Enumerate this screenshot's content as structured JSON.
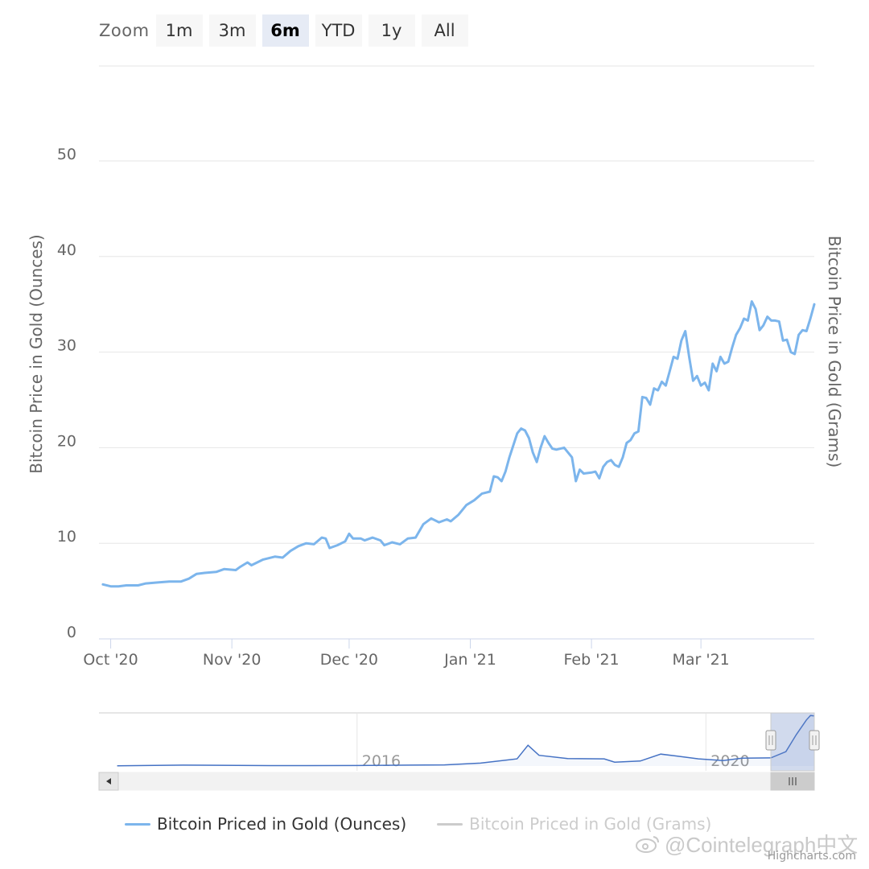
{
  "zoom": {
    "label": "Zoom",
    "buttons": [
      {
        "label": "1m",
        "selected": false
      },
      {
        "label": "3m",
        "selected": false
      },
      {
        "label": "6m",
        "selected": true
      },
      {
        "label": "YTD",
        "selected": false
      },
      {
        "label": "1y",
        "selected": false
      },
      {
        "label": "All",
        "selected": false
      }
    ]
  },
  "chart_data": {
    "type": "line",
    "ylabel_left": "Bitcoin Price in Gold (Ounces)",
    "ylabel_right": "Bitcoin Price in Gold (Grams)",
    "ylim": [
      0,
      50
    ],
    "y_ticks": [
      "0",
      "10",
      "20",
      "30",
      "40",
      "50"
    ],
    "x_ticks": [
      "Oct '20",
      "Nov '20",
      "Dec '20",
      "Jan '21",
      "Feb '21",
      "Mar '21"
    ],
    "grid": true,
    "series": [
      {
        "name": "Bitcoin Priced in Gold (Ounces)",
        "color": "#7cb5ec",
        "visible": true,
        "points": [
          [
            "2020-09-29",
            5.7
          ],
          [
            "2020-10-01",
            5.5
          ],
          [
            "2020-10-03",
            5.5
          ],
          [
            "2020-10-05",
            5.6
          ],
          [
            "2020-10-08",
            5.6
          ],
          [
            "2020-10-10",
            5.8
          ],
          [
            "2020-10-13",
            5.9
          ],
          [
            "2020-10-16",
            6.0
          ],
          [
            "2020-10-19",
            6.0
          ],
          [
            "2020-10-21",
            6.3
          ],
          [
            "2020-10-23",
            6.8
          ],
          [
            "2020-10-25",
            6.9
          ],
          [
            "2020-10-28",
            7.0
          ],
          [
            "2020-10-30",
            7.3
          ],
          [
            "2020-11-02",
            7.2
          ],
          [
            "2020-11-03",
            7.5
          ],
          [
            "2020-11-05",
            8.0
          ],
          [
            "2020-11-06",
            7.7
          ],
          [
            "2020-11-09",
            8.3
          ],
          [
            "2020-11-12",
            8.6
          ],
          [
            "2020-11-14",
            8.5
          ],
          [
            "2020-11-16",
            9.2
          ],
          [
            "2020-11-18",
            9.7
          ],
          [
            "2020-11-20",
            10.0
          ],
          [
            "2020-11-22",
            9.9
          ],
          [
            "2020-11-24",
            10.6
          ],
          [
            "2020-11-25",
            10.5
          ],
          [
            "2020-11-26",
            9.5
          ],
          [
            "2020-11-28",
            9.8
          ],
          [
            "2020-11-30",
            10.2
          ],
          [
            "2020-12-01",
            11.0
          ],
          [
            "2020-12-02",
            10.5
          ],
          [
            "2020-12-04",
            10.5
          ],
          [
            "2020-12-05",
            10.3
          ],
          [
            "2020-12-07",
            10.6
          ],
          [
            "2020-12-09",
            10.3
          ],
          [
            "2020-12-10",
            9.8
          ],
          [
            "2020-12-12",
            10.1
          ],
          [
            "2020-12-14",
            9.9
          ],
          [
            "2020-12-16",
            10.5
          ],
          [
            "2020-12-18",
            10.6
          ],
          [
            "2020-12-20",
            12.0
          ],
          [
            "2020-12-22",
            12.6
          ],
          [
            "2020-12-24",
            12.2
          ],
          [
            "2020-12-26",
            12.5
          ],
          [
            "2020-12-27",
            12.3
          ],
          [
            "2020-12-29",
            13.0
          ],
          [
            "2020-12-31",
            14.0
          ],
          [
            "2021-01-02",
            14.5
          ],
          [
            "2021-01-04",
            15.2
          ],
          [
            "2021-01-06",
            15.4
          ],
          [
            "2021-01-07",
            17.0
          ],
          [
            "2021-01-08",
            16.9
          ],
          [
            "2021-01-09",
            16.5
          ],
          [
            "2021-01-10",
            17.5
          ],
          [
            "2021-01-11",
            19.0
          ],
          [
            "2021-01-13",
            21.5
          ],
          [
            "2021-01-14",
            22.0
          ],
          [
            "2021-01-15",
            21.8
          ],
          [
            "2021-01-16",
            21.0
          ],
          [
            "2021-01-17",
            19.5
          ],
          [
            "2021-01-18",
            18.5
          ],
          [
            "2021-01-19",
            20.0
          ],
          [
            "2021-01-20",
            21.2
          ],
          [
            "2021-01-21",
            20.5
          ],
          [
            "2021-01-22",
            19.9
          ],
          [
            "2021-01-23",
            19.8
          ],
          [
            "2021-01-25",
            20.0
          ],
          [
            "2021-01-27",
            19.0
          ],
          [
            "2021-01-28",
            16.5
          ],
          [
            "2021-01-29",
            17.7
          ],
          [
            "2021-01-30",
            17.3
          ],
          [
            "2021-02-01",
            17.4
          ],
          [
            "2021-02-02",
            17.5
          ],
          [
            "2021-02-03",
            16.8
          ],
          [
            "2021-02-04",
            18.0
          ],
          [
            "2021-02-05",
            18.5
          ],
          [
            "2021-02-06",
            18.7
          ],
          [
            "2021-02-07",
            18.2
          ],
          [
            "2021-02-08",
            18.0
          ],
          [
            "2021-02-09",
            19.0
          ],
          [
            "2021-02-10",
            20.5
          ],
          [
            "2021-02-11",
            20.8
          ],
          [
            "2021-02-12",
            21.5
          ],
          [
            "2021-02-13",
            21.7
          ],
          [
            "2021-02-14",
            25.3
          ],
          [
            "2021-02-15",
            25.2
          ],
          [
            "2021-02-16",
            24.5
          ],
          [
            "2021-02-17",
            26.2
          ],
          [
            "2021-02-18",
            26.0
          ],
          [
            "2021-02-19",
            26.9
          ],
          [
            "2021-02-20",
            26.5
          ],
          [
            "2021-02-21",
            28.0
          ],
          [
            "2021-02-22",
            29.5
          ],
          [
            "2021-02-23",
            29.3
          ],
          [
            "2021-02-24",
            31.2
          ],
          [
            "2021-02-25",
            32.2
          ],
          [
            "2021-02-26",
            29.5
          ],
          [
            "2021-02-27",
            27.0
          ],
          [
            "2021-02-28",
            27.5
          ],
          [
            "2021-03-01",
            26.5
          ],
          [
            "2021-03-02",
            26.8
          ],
          [
            "2021-03-03",
            26.0
          ],
          [
            "2021-03-04",
            28.8
          ],
          [
            "2021-03-05",
            28.0
          ],
          [
            "2021-03-06",
            29.5
          ],
          [
            "2021-03-07",
            28.8
          ],
          [
            "2021-03-08",
            29.0
          ],
          [
            "2021-03-09",
            30.5
          ],
          [
            "2021-03-10",
            31.8
          ],
          [
            "2021-03-11",
            32.5
          ],
          [
            "2021-03-12",
            33.5
          ],
          [
            "2021-03-13",
            33.3
          ],
          [
            "2021-03-14",
            35.3
          ],
          [
            "2021-03-15",
            34.5
          ],
          [
            "2021-03-16",
            32.3
          ],
          [
            "2021-03-17",
            32.8
          ],
          [
            "2021-03-18",
            33.7
          ],
          [
            "2021-03-19",
            33.3
          ],
          [
            "2021-03-20",
            33.3
          ],
          [
            "2021-03-21",
            33.2
          ],
          [
            "2021-03-22",
            31.2
          ],
          [
            "2021-03-23",
            31.3
          ],
          [
            "2021-03-24",
            30.0
          ],
          [
            "2021-03-25",
            29.8
          ],
          [
            "2021-03-26",
            31.8
          ],
          [
            "2021-03-27",
            32.3
          ],
          [
            "2021-03-28",
            32.2
          ],
          [
            "2021-03-29",
            33.5
          ],
          [
            "2021-03-30",
            35.0
          ]
        ]
      },
      {
        "name": "Bitcoin Priced in Gold (Grams)",
        "color": "#cccccc",
        "visible": false,
        "points": []
      }
    ],
    "navigator": {
      "x_ticks": [
        "2016",
        "2020"
      ],
      "range_start": "2020-09-29",
      "range_end": "2021-03-30",
      "series_points": [
        [
          "2013-04-01",
          0.1
        ],
        [
          "2014-01-01",
          0.6
        ],
        [
          "2015-01-01",
          0.3
        ],
        [
          "2016-01-01",
          0.35
        ],
        [
          "2017-01-01",
          0.8
        ],
        [
          "2017-06-01",
          2.0
        ],
        [
          "2017-11-01",
          5.0
        ],
        [
          "2017-12-17",
          14.5
        ],
        [
          "2018-02-01",
          7.5
        ],
        [
          "2018-06-01",
          5.2
        ],
        [
          "2018-11-01",
          5.0
        ],
        [
          "2018-12-15",
          2.7
        ],
        [
          "2019-04-01",
          3.5
        ],
        [
          "2019-06-26",
          8.3
        ],
        [
          "2019-09-01",
          7.0
        ],
        [
          "2019-12-01",
          5.0
        ],
        [
          "2020-03-12",
          3.8
        ],
        [
          "2020-06-01",
          5.5
        ],
        [
          "2020-09-29",
          5.7
        ],
        [
          "2020-12-01",
          10.0
        ],
        [
          "2021-01-14",
          22.0
        ],
        [
          "2021-02-25",
          32.2
        ],
        [
          "2021-03-14",
          35.3
        ],
        [
          "2021-03-30",
          35.0
        ]
      ]
    }
  },
  "legend": {
    "items": [
      {
        "label": "Bitcoin Priced in Gold (Ounces)",
        "color": "#7cb5ec",
        "visible": true
      },
      {
        "label": "Bitcoin Priced in Gold (Grams)",
        "color": "#cccccc",
        "visible": false
      }
    ]
  },
  "credits": "Highcharts.com",
  "watermark": "@Cointelegraph中文"
}
